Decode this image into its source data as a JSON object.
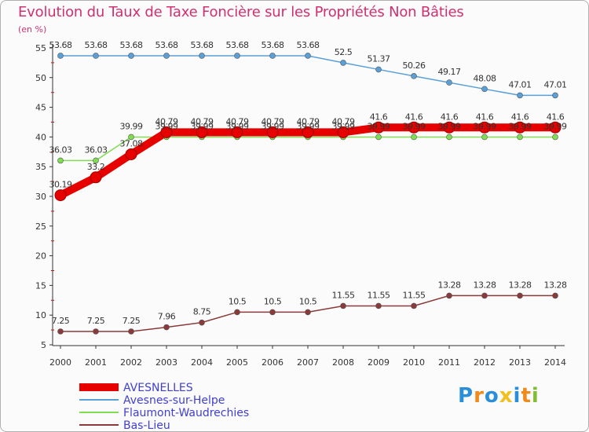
{
  "chart_data": {
    "type": "line",
    "title": "Evolution du Taux de Taxe Foncière sur les Propriétés Non Bâties",
    "ylabel": "(en %)",
    "xlabel": "",
    "ylim": [
      5,
      55
    ],
    "yticks": [
      5,
      10,
      15,
      20,
      25,
      30,
      35,
      40,
      45,
      50,
      55
    ],
    "x": [
      "2000",
      "2001",
      "2002",
      "2003",
      "2004",
      "2005",
      "2006",
      "2007",
      "2008",
      "2009",
      "2010",
      "2011",
      "2012",
      "2013",
      "2014"
    ],
    "grid": false,
    "legend_position": "bottom-left",
    "series": [
      {
        "name": "AVESNELLES",
        "color": "#e60000",
        "thick": true,
        "values": [
          30.19,
          33.2,
          37.08,
          40.79,
          40.79,
          40.79,
          40.79,
          40.79,
          40.79,
          41.6,
          41.6,
          41.6,
          41.6,
          41.6,
          41.6
        ],
        "labels": [
          "30.19",
          "33.2",
          "37.08",
          "40.79",
          "40.79",
          "40.79",
          "40.79",
          "40.79",
          "40.79",
          "41.6",
          "41.6",
          "41.6",
          "41.6",
          "41.6",
          "41.6"
        ]
      },
      {
        "name": "Avesnes-sur-Helpe",
        "color": "#5aa0d8",
        "thick": false,
        "values": [
          53.68,
          53.68,
          53.68,
          53.68,
          53.68,
          53.68,
          53.68,
          53.68,
          52.5,
          51.37,
          50.26,
          49.17,
          48.08,
          47.01,
          47.01
        ],
        "labels": [
          "53.68",
          "53.68",
          "53.68",
          "53.68",
          "53.68",
          "53.68",
          "53.68",
          "53.68",
          "52.5",
          "51.37",
          "50.26",
          "49.17",
          "48.08",
          "47.01",
          "47.01"
        ]
      },
      {
        "name": "Flaumont-Waudrechies",
        "color": "#80dd50",
        "thick": false,
        "values": [
          36.03,
          36.03,
          39.99,
          39.99,
          39.99,
          39.99,
          39.99,
          39.99,
          39.99,
          39.99,
          39.99,
          39.99,
          39.99,
          39.99,
          39.99
        ],
        "labels": [
          "36.03",
          "36.03",
          "39.99",
          "39.99",
          "39.99",
          "39.99",
          "39.99",
          "39.99",
          "39.99",
          "39.99",
          "39.99",
          "39.99",
          "39.99",
          "39.99",
          "39.99"
        ]
      },
      {
        "name": "Bas-Lieu",
        "color": "#8a3a3a",
        "thick": false,
        "values": [
          7.25,
          7.25,
          7.25,
          7.96,
          8.75,
          10.5,
          10.5,
          10.5,
          11.55,
          11.55,
          11.55,
          13.28,
          13.28,
          13.28,
          13.28
        ],
        "labels": [
          "7.25",
          "7.25",
          "7.25",
          "7.96",
          "8.75",
          "10.5",
          "10.5",
          "10.5",
          "11.55",
          "11.55",
          "11.55",
          "13.28",
          "13.28",
          "13.28",
          "13.28"
        ]
      }
    ]
  },
  "logo": {
    "letters": [
      "P",
      "r",
      "o",
      "x",
      "i",
      "t",
      "i"
    ],
    "colors": [
      "#2a8fd8",
      "#f08a1a",
      "#2a8fd8",
      "#f0c020",
      "#2a8fd8",
      "#f08a1a",
      "#80c030"
    ]
  }
}
